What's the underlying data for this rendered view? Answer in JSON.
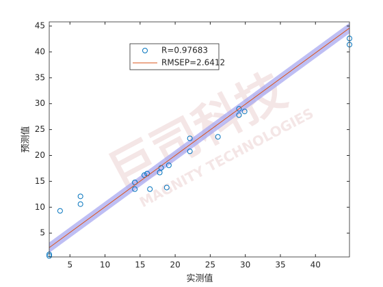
{
  "chart_data": {
    "type": "scatter",
    "xlabel": "实测值",
    "ylabel": "预测值",
    "xlim": [
      2.05,
      44.85
    ],
    "ylim": [
      0.4,
      45.8
    ],
    "xticks": [
      5,
      10,
      15,
      20,
      25,
      30,
      35,
      40
    ],
    "yticks": [
      5,
      10,
      15,
      20,
      25,
      30,
      35,
      40,
      45
    ],
    "series": [
      {
        "name": "R=0.97683",
        "color": "#0072BD",
        "marker": "circle",
        "x": [
          2.05,
          2.05,
          3.6,
          6.5,
          6.5,
          14.25,
          14.25,
          15.6,
          16.0,
          16.4,
          17.8,
          18.0,
          19.1,
          18.8,
          22.1,
          22.1,
          26.1,
          29.1,
          29.1,
          29.9,
          44.85,
          44.85
        ],
        "values": [
          0.9,
          0.6,
          9.3,
          12.1,
          10.6,
          14.8,
          13.5,
          16.2,
          16.5,
          13.5,
          16.7,
          17.6,
          18.1,
          13.8,
          23.3,
          20.8,
          23.6,
          29.0,
          27.8,
          28.5,
          42.6,
          41.4
        ]
      },
      {
        "name": "RMSEP=2.6412",
        "color": "#D95319",
        "marker": "line",
        "x": [
          2.05,
          44.85
        ],
        "values": [
          2.2,
          44.6
        ]
      }
    ],
    "band": {
      "color": "#a8a8f0",
      "x": [
        2.05,
        44.85
      ],
      "upper": [
        3.2,
        45.6
      ],
      "lower": [
        1.2,
        43.6
      ]
    },
    "watermark": {
      "logo": "巨司科技",
      "text": "MAGNITY TECHNOLOGIES"
    }
  }
}
